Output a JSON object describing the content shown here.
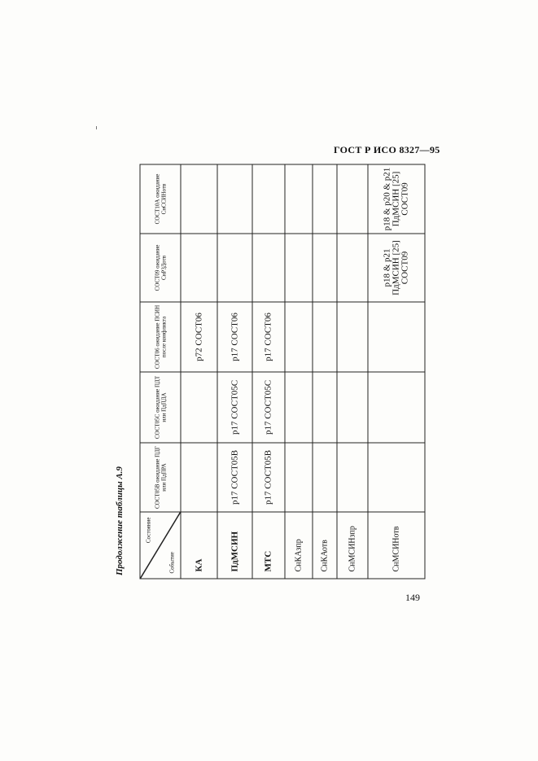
{
  "header": {
    "standard": "ГОСТ Р ИСО 8327—95"
  },
  "caption": "Продолжение таблицы А.9",
  "page_number": "149",
  "table": {
    "corner_state": "Состояние",
    "corner_event": "Событие",
    "columns": [
      "СОСТ05В ожидание ПДГ или ПдПРА",
      "СОСТ05С ожидание ПДТ или ПдПДА",
      "СОСТ06 ожидание ПСИН после конфликта",
      "СОСТ09 ожидание СнРЗДотв",
      "СОСТ10А ожидание СнССИНотв"
    ],
    "rows": [
      {
        "event": "КА",
        "cells": [
          "",
          "",
          "p72 СОСТ06",
          "",
          ""
        ]
      },
      {
        "event": "ПдМСИН",
        "cells": [
          "p17 СОСТ05В",
          "p17 СОСТ05С",
          "p17 СОСТ06",
          "",
          ""
        ]
      },
      {
        "event": "МТС",
        "cells": [
          "p17 СОСТ05В",
          "p17 СОСТ05С",
          "p17 СОСТ06",
          "",
          ""
        ]
      },
      {
        "event": "СнКАзпр",
        "cells": [
          "",
          "",
          "",
          "",
          ""
        ]
      },
      {
        "event": "СнКАотв",
        "cells": [
          "",
          "",
          "",
          "",
          ""
        ]
      },
      {
        "event": "СнМСИНзпр",
        "cells": [
          "",
          "",
          "",
          "",
          ""
        ]
      },
      {
        "event": "СнМСИНотв",
        "cells": [
          "",
          "",
          "",
          "p18 & p21 ПдМСИН [25] СОСТ09",
          "p18 & p20 & p21 ПдМСИН [25] СОСТ09"
        ]
      }
    ]
  }
}
